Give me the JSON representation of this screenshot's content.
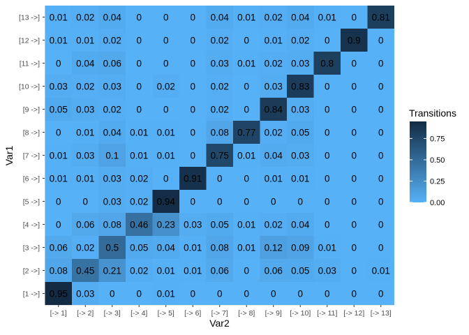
{
  "chart_data": {
    "type": "heatmap",
    "xlabel": "Var2",
    "ylabel": "Var1",
    "x_categories": [
      "[-> 1]",
      "[-> 2]",
      "[-> 3]",
      "[-> 4]",
      "[-> 5]",
      "[-> 6]",
      "[-> 7]",
      "[-> 8]",
      "[-> 9]",
      "[-> 10]",
      "[-> 11]",
      "[-> 12]",
      "[-> 13]"
    ],
    "y_categories": [
      "[1 ->]",
      "[2 ->]",
      "[3 ->]",
      "[4 ->]",
      "[5 ->]",
      "[6 ->]",
      "[7 ->]",
      "[8 ->]",
      "[9 ->]",
      "[10 ->]",
      "[11 ->]",
      "[12 ->]",
      "[13 ->]"
    ],
    "values": [
      [
        0.95,
        0.03,
        0,
        0,
        0.01,
        0,
        0,
        0,
        0,
        0,
        0,
        0,
        0
      ],
      [
        0.08,
        0.45,
        0.21,
        0.02,
        0.01,
        0.01,
        0.06,
        0,
        0.06,
        0.05,
        0.03,
        0,
        0.01
      ],
      [
        0.06,
        0.02,
        0.5,
        0.05,
        0.04,
        0.01,
        0.08,
        0.01,
        0.12,
        0.09,
        0.01,
        0,
        0
      ],
      [
        0,
        0.06,
        0.08,
        0.46,
        0.23,
        0.03,
        0.05,
        0.01,
        0.02,
        0.04,
        0,
        0,
        0
      ],
      [
        0,
        0,
        0.03,
        0.02,
        0.94,
        0,
        0,
        0,
        0,
        0,
        0,
        0,
        0
      ],
      [
        0.01,
        0.01,
        0.03,
        0.02,
        0,
        0.91,
        0,
        0,
        0.01,
        0.01,
        0,
        0,
        0
      ],
      [
        0.01,
        0.03,
        0.1,
        0.01,
        0.01,
        0,
        0.75,
        0.01,
        0.04,
        0.03,
        0,
        0,
        0
      ],
      [
        0,
        0.01,
        0.04,
        0.01,
        0.01,
        0,
        0.08,
        0.77,
        0.02,
        0.05,
        0,
        0,
        0
      ],
      [
        0.05,
        0.03,
        0.02,
        0,
        0,
        0,
        0.02,
        0,
        0.84,
        0.03,
        0,
        0,
        0
      ],
      [
        0.03,
        0.02,
        0.03,
        0,
        0.02,
        0,
        0.02,
        0,
        0.03,
        0.83,
        0,
        0,
        0
      ],
      [
        0,
        0.04,
        0.06,
        0,
        0,
        0,
        0.03,
        0.01,
        0.02,
        0.03,
        0.8,
        0,
        0
      ],
      [
        0.01,
        0.01,
        0.02,
        0,
        0,
        0,
        0.02,
        0,
        0.01,
        0.02,
        0,
        0.9,
        0
      ],
      [
        0.01,
        0.02,
        0.04,
        0,
        0,
        0,
        0.04,
        0.01,
        0.02,
        0.04,
        0.01,
        0,
        0.81
      ]
    ],
    "legend": {
      "title": "Transitions",
      "ticks": [
        0.0,
        0.25,
        0.5,
        0.75
      ],
      "tick_labels": [
        "0.00",
        "0.25",
        "0.50",
        "0.75"
      ],
      "range": [
        0,
        0.95
      ],
      "position": "right"
    },
    "colors": {
      "low": "#56B1F7",
      "high": "#132B43",
      "panel_background": "#EBEBEB",
      "tick_text": "#4D4D4D"
    }
  }
}
